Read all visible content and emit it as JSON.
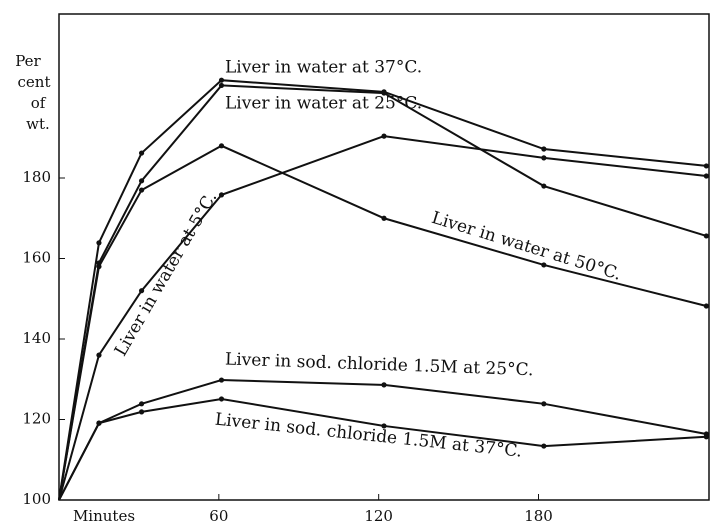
{
  "chart_data": {
    "type": "line",
    "ylabel": [
      "Per",
      "cent",
      "of",
      "wt."
    ],
    "x": [
      0,
      15,
      31,
      61,
      122,
      182,
      243
    ],
    "xlim": [
      0,
      244
    ],
    "xticks": [
      {
        "value": 0,
        "label": "Minutes"
      },
      60,
      120,
      180
    ],
    "ylim": [
      100,
      220
    ],
    "yticks": [
      100,
      120,
      140,
      160,
      180
    ],
    "color": "#111111",
    "series": [
      {
        "name": "Liver in water at 37°C.",
        "values": [
          100,
          163.9,
          186.2,
          204.3,
          201.4,
          187.2,
          183
        ]
      },
      {
        "name": "Liver in water at 25°C.",
        "values": [
          100,
          158.9,
          179.3,
          203,
          201.1,
          178,
          165.6
        ]
      },
      {
        "name": "Liver in water at 50°C.",
        "values": [
          100,
          158,
          177,
          188,
          170,
          158.4,
          148.2
        ]
      },
      {
        "name": "Liver in water at 5°C.",
        "values": [
          100,
          136,
          152,
          175.8,
          190.4,
          185,
          180.5
        ]
      },
      {
        "name": "Liver in sod. chloride 1.5M at 25°C.",
        "values": [
          100,
          119.1,
          123.9,
          129.8,
          128.6,
          123.9,
          116.4
        ]
      },
      {
        "name": "Liver in sod. chloride 1.5M at 37°C.",
        "values": [
          100,
          119.1,
          121.9,
          125.1,
          118.4,
          113.4,
          115.7
        ]
      }
    ]
  }
}
